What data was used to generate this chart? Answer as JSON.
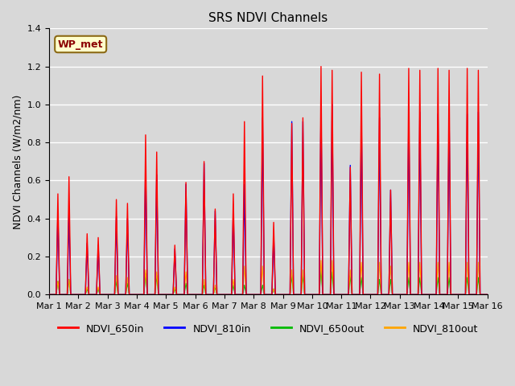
{
  "title": "SRS NDVI Channels",
  "ylabel": "NDVI Channels (W/m2/nm)",
  "annotation_text": "WP_met",
  "annotation_color": "#8B0000",
  "annotation_bg": "#FFFFCC",
  "annotation_border": "#8B6914",
  "ylim": [
    0,
    1.4
  ],
  "legend_labels": [
    "NDVI_650in",
    "NDVI_810in",
    "NDVI_650out",
    "NDVI_810out"
  ],
  "legend_colors": [
    "#FF0000",
    "#0000FF",
    "#00BB00",
    "#FFA500"
  ],
  "background_color": "#D8D8D8",
  "grid_color": "#FFFFFF",
  "xtick_labels": [
    "Mar 1",
    "Mar 2",
    "Mar 3",
    "Mar 4",
    "Mar 5",
    "Mar 6",
    "Mar 7",
    "Mar 8",
    "Mar 9",
    "Mar 10",
    "Mar 11",
    "Mar 12",
    "Mar 13",
    "Mar 14",
    "Mar 15",
    "Mar 16"
  ],
  "n_days": 15,
  "day_data": [
    {
      "p650in": [
        0.53,
        0.62
      ],
      "p810in": [
        0.43,
        0.42
      ],
      "p650out": [
        0.07,
        0.08
      ],
      "p810out": [
        0.07,
        0.08
      ]
    },
    {
      "p650in": [
        0.32,
        0.3
      ],
      "p810in": [
        0.27,
        0.26
      ],
      "p650out": [
        0.03,
        0.03
      ],
      "p810out": [
        0.04,
        0.04
      ]
    },
    {
      "p650in": [
        0.5,
        0.48
      ],
      "p810in": [
        0.41,
        0.4
      ],
      "p650out": [
        0.07,
        0.06
      ],
      "p810out": [
        0.1,
        0.09
      ]
    },
    {
      "p650in": [
        0.84,
        0.75
      ],
      "p810in": [
        0.68,
        0.63
      ],
      "p650out": [
        0.11,
        0.1
      ],
      "p810out": [
        0.13,
        0.12
      ]
    },
    {
      "p650in": [
        0.26,
        0.59
      ],
      "p810in": [
        0.24,
        0.58
      ],
      "p650out": [
        0.03,
        0.06
      ],
      "p810out": [
        0.04,
        0.12
      ]
    },
    {
      "p650in": [
        0.7,
        0.45
      ],
      "p810in": [
        0.69,
        0.44
      ],
      "p650out": [
        0.05,
        0.04
      ],
      "p810out": [
        0.08,
        0.05
      ]
    },
    {
      "p650in": [
        0.53,
        0.91
      ],
      "p810in": [
        0.45,
        0.58
      ],
      "p650out": [
        0.05,
        0.05
      ],
      "p810out": [
        0.08,
        0.15
      ]
    },
    {
      "p650in": [
        1.15,
        0.38
      ],
      "p810in": [
        0.93,
        0.32
      ],
      "p650out": [
        0.05,
        0.03
      ],
      "p810out": [
        0.15,
        0.03
      ]
    },
    {
      "p650in": [
        0.9,
        0.93
      ],
      "p810in": [
        0.91,
        0.91
      ],
      "p650out": [
        0.1,
        0.1
      ],
      "p810out": [
        0.13,
        0.13
      ]
    },
    {
      "p650in": [
        1.2,
        1.18
      ],
      "p810in": [
        1.0,
        1.0
      ],
      "p650out": [
        0.13,
        0.12
      ],
      "p810out": [
        0.18,
        0.18
      ]
    },
    {
      "p650in": [
        0.67,
        1.17
      ],
      "p810in": [
        0.68,
        0.93
      ],
      "p650out": [
        0.1,
        0.09
      ],
      "p810out": [
        0.13,
        0.17
      ]
    },
    {
      "p650in": [
        1.16,
        0.55
      ],
      "p810in": [
        0.93,
        0.55
      ],
      "p650out": [
        0.08,
        0.08
      ],
      "p810out": [
        0.17,
        0.15
      ]
    },
    {
      "p650in": [
        1.19,
        1.18
      ],
      "p810in": [
        0.95,
        0.96
      ],
      "p650out": [
        0.09,
        0.09
      ],
      "p810out": [
        0.17,
        0.17
      ]
    },
    {
      "p650in": [
        1.19,
        1.18
      ],
      "p810in": [
        0.95,
        0.96
      ],
      "p650out": [
        0.09,
        0.09
      ],
      "p810out": [
        0.17,
        0.17
      ]
    },
    {
      "p650in": [
        1.19,
        1.18
      ],
      "p810in": [
        0.95,
        0.96
      ],
      "p650out": [
        0.09,
        0.09
      ],
      "p810out": [
        0.17,
        0.17
      ]
    }
  ]
}
